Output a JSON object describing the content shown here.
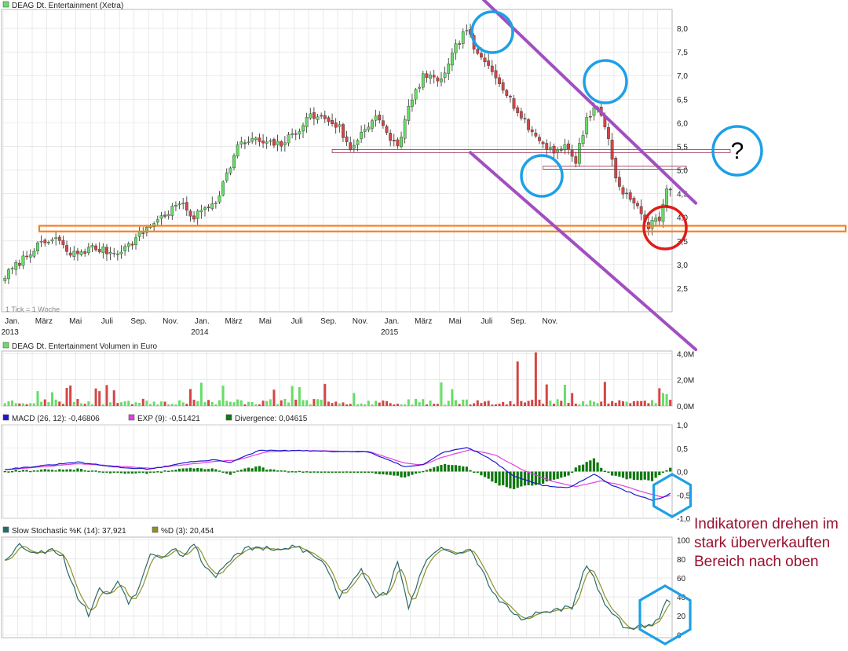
{
  "colors": {
    "up": "#66dd66",
    "down": "#d64545",
    "wick": "#222222",
    "grid": "#dddddd",
    "macd": "#1a1acc",
    "exp": "#e23fe2",
    "divergence": "#0f7a0f",
    "stoch_k": "#2a6a6a",
    "stoch_d": "#8f8f2a",
    "channel": "#a14fc0",
    "support_band": "#f48020",
    "circle_blue": "#1ea0e6",
    "circle_red": "#e11b1b",
    "note_text": "#9a1030",
    "resistance_line": "#9a2a50"
  },
  "chart_data": [
    {
      "type": "candlestick",
      "title": "DEAG Dt. Entertainment (Xetra)",
      "footnote": "1 Tick = 1 Woche",
      "x_labels": [
        "Jan.",
        "März",
        "Mai",
        "Juli",
        "Sep.",
        "Nov.",
        "Jan.",
        "März",
        "Mai",
        "Juli",
        "Sep.",
        "Nov.",
        "Jan.",
        "März",
        "Mai",
        "Juli",
        "Sep.",
        "Nov."
      ],
      "year_labels": [
        "2013",
        "2014",
        "2015"
      ],
      "y_ticks": [
        "2,5",
        "3,0",
        "3,5",
        "4,0",
        "4,5",
        "5,0",
        "5,5",
        "6,0",
        "6,5",
        "7,0",
        "7,5",
        "8,0"
      ],
      "y_tick_values": [
        2.5,
        3.0,
        3.5,
        4.0,
        4.5,
        5.0,
        5.5,
        6.0,
        6.5,
        7.0,
        7.5,
        8.0
      ],
      "ylim": [
        2.0,
        8.4
      ],
      "close_anchors": [
        [
          0,
          2.75
        ],
        [
          8,
          3.35
        ],
        [
          14,
          3.55
        ],
        [
          18,
          3.2
        ],
        [
          24,
          3.35
        ],
        [
          30,
          3.25
        ],
        [
          34,
          3.4
        ],
        [
          40,
          3.85
        ],
        [
          44,
          4.05
        ],
        [
          48,
          4.3
        ],
        [
          52,
          4.0
        ],
        [
          55,
          4.2
        ],
        [
          58,
          4.35
        ],
        [
          61,
          4.9
        ],
        [
          64,
          5.5
        ],
        [
          68,
          5.65
        ],
        [
          72,
          5.55
        ],
        [
          76,
          5.55
        ],
        [
          80,
          5.8
        ],
        [
          84,
          6.15
        ],
        [
          88,
          6.1
        ],
        [
          92,
          5.9
        ],
        [
          95,
          5.4
        ],
        [
          98,
          5.8
        ],
        [
          102,
          6.15
        ],
        [
          105,
          5.75
        ],
        [
          108,
          5.5
        ],
        [
          111,
          6.3
        ],
        [
          115,
          7.0
        ],
        [
          118,
          6.9
        ],
        [
          121,
          7.0
        ],
        [
          124,
          7.6
        ],
        [
          127,
          8.0
        ],
        [
          130,
          7.4
        ],
        [
          133,
          7.2
        ],
        [
          136,
          6.9
        ],
        [
          139,
          6.5
        ],
        [
          142,
          6.1
        ],
        [
          145,
          5.8
        ],
        [
          148,
          5.55
        ],
        [
          151,
          5.4
        ],
        [
          154,
          5.5
        ],
        [
          157,
          5.2
        ],
        [
          160,
          6.1
        ],
        [
          163,
          6.35
        ],
        [
          166,
          5.7
        ],
        [
          168,
          4.8
        ],
        [
          171,
          4.45
        ],
        [
          174,
          4.2
        ],
        [
          177,
          3.8
        ],
        [
          180,
          4.0
        ],
        [
          182,
          4.6
        ],
        [
          183,
          4.65
        ]
      ],
      "support_band": [
        3.7,
        3.82
      ],
      "resistance_lines": [
        5.4,
        5.05
      ],
      "channel_upper": [
        [
          129,
          8.8
        ],
        [
          190,
          4.3
        ]
      ],
      "channel_lower": [
        [
          128,
          5.37
        ],
        [
          190,
          1.2
        ]
      ],
      "annotation_question": "?"
    },
    {
      "type": "bar",
      "title": "DEAG Dt. Entertainment Volumen in Euro",
      "y_ticks": [
        "0,0M",
        "2,0M",
        "4,0M"
      ],
      "y_tick_values": [
        0,
        2,
        4
      ],
      "ylim": [
        0,
        4.2
      ]
    },
    {
      "type": "line",
      "legend": [
        {
          "name": "MACD (26, 12): -0,46806",
          "color": "#1a1acc"
        },
        {
          "name": "EXP (9): -0,51421",
          "color": "#e23fe2"
        },
        {
          "name": "Divergence: 0,04615",
          "color": "#0f7a0f"
        }
      ],
      "y_ticks": [
        "-1,0",
        "-0,5",
        "0,0",
        "0,5",
        "1,0"
      ],
      "y_tick_values": [
        -1.0,
        -0.5,
        0.0,
        0.5,
        1.0
      ],
      "ylim": [
        -1.0,
        1.0
      ],
      "macd_anchors": [
        [
          0,
          0.05
        ],
        [
          10,
          0.12
        ],
        [
          20,
          0.2
        ],
        [
          30,
          0.1
        ],
        [
          40,
          0.05
        ],
        [
          50,
          0.2
        ],
        [
          58,
          0.25
        ],
        [
          62,
          0.2
        ],
        [
          70,
          0.45
        ],
        [
          80,
          0.45
        ],
        [
          90,
          0.43
        ],
        [
          100,
          0.42
        ],
        [
          110,
          0.1
        ],
        [
          115,
          0.15
        ],
        [
          120,
          0.4
        ],
        [
          127,
          0.52
        ],
        [
          133,
          0.3
        ],
        [
          140,
          -0.1
        ],
        [
          148,
          -0.3
        ],
        [
          155,
          -0.35
        ],
        [
          162,
          -0.05
        ],
        [
          167,
          -0.3
        ],
        [
          172,
          -0.45
        ],
        [
          178,
          -0.62
        ],
        [
          181,
          -0.55
        ],
        [
          183,
          -0.47
        ]
      ],
      "exp_anchors": [
        [
          0,
          0.04
        ],
        [
          10,
          0.1
        ],
        [
          20,
          0.17
        ],
        [
          30,
          0.12
        ],
        [
          40,
          0.07
        ],
        [
          50,
          0.15
        ],
        [
          58,
          0.22
        ],
        [
          64,
          0.25
        ],
        [
          72,
          0.42
        ],
        [
          80,
          0.45
        ],
        [
          90,
          0.44
        ],
        [
          100,
          0.43
        ],
        [
          110,
          0.18
        ],
        [
          115,
          0.14
        ],
        [
          120,
          0.3
        ],
        [
          128,
          0.47
        ],
        [
          135,
          0.35
        ],
        [
          142,
          0.05
        ],
        [
          150,
          -0.2
        ],
        [
          157,
          -0.32
        ],
        [
          164,
          -0.2
        ],
        [
          170,
          -0.3
        ],
        [
          176,
          -0.45
        ],
        [
          181,
          -0.55
        ],
        [
          183,
          -0.51
        ]
      ]
    },
    {
      "type": "line",
      "legend": [
        {
          "name": "Slow Stochastic %K (14): 37,921",
          "color": "#2a6a6a"
        },
        {
          "name": "%D (3): 20,454",
          "color": "#8f8f2a"
        }
      ],
      "y_ticks": [
        "0",
        "20",
        "40",
        "60",
        "80",
        "100"
      ],
      "y_tick_values": [
        0,
        20,
        40,
        60,
        80,
        100
      ],
      "ylim": [
        -3,
        103
      ],
      "stoch_anchors": [
        [
          0,
          80
        ],
        [
          4,
          95
        ],
        [
          9,
          85
        ],
        [
          13,
          92
        ],
        [
          16,
          82
        ],
        [
          18,
          60
        ],
        [
          20,
          40
        ],
        [
          23,
          22
        ],
        [
          26,
          48
        ],
        [
          29,
          42
        ],
        [
          31,
          58
        ],
        [
          34,
          35
        ],
        [
          37,
          50
        ],
        [
          40,
          88
        ],
        [
          43,
          82
        ],
        [
          46,
          92
        ],
        [
          49,
          84
        ],
        [
          52,
          95
        ],
        [
          55,
          72
        ],
        [
          58,
          62
        ],
        [
          62,
          80
        ],
        [
          66,
          90
        ],
        [
          70,
          92
        ],
        [
          75,
          88
        ],
        [
          80,
          94
        ],
        [
          84,
          85
        ],
        [
          88,
          75
        ],
        [
          92,
          40
        ],
        [
          95,
          55
        ],
        [
          98,
          70
        ],
        [
          102,
          40
        ],
        [
          105,
          45
        ],
        [
          108,
          75
        ],
        [
          111,
          30
        ],
        [
          114,
          60
        ],
        [
          117,
          85
        ],
        [
          121,
          92
        ],
        [
          125,
          85
        ],
        [
          128,
          88
        ],
        [
          131,
          70
        ],
        [
          134,
          45
        ],
        [
          138,
          30
        ],
        [
          142,
          15
        ],
        [
          146,
          22
        ],
        [
          150,
          25
        ],
        [
          154,
          28
        ],
        [
          156,
          28
        ],
        [
          160,
          75
        ],
        [
          163,
          50
        ],
        [
          166,
          25
        ],
        [
          170,
          10
        ],
        [
          174,
          8
        ],
        [
          178,
          10
        ],
        [
          180,
          18
        ],
        [
          182,
          37
        ]
      ]
    }
  ],
  "annotation_note": [
    "Indikatoren drehen im",
    "stark überverkauften",
    "Bereich nach oben"
  ]
}
